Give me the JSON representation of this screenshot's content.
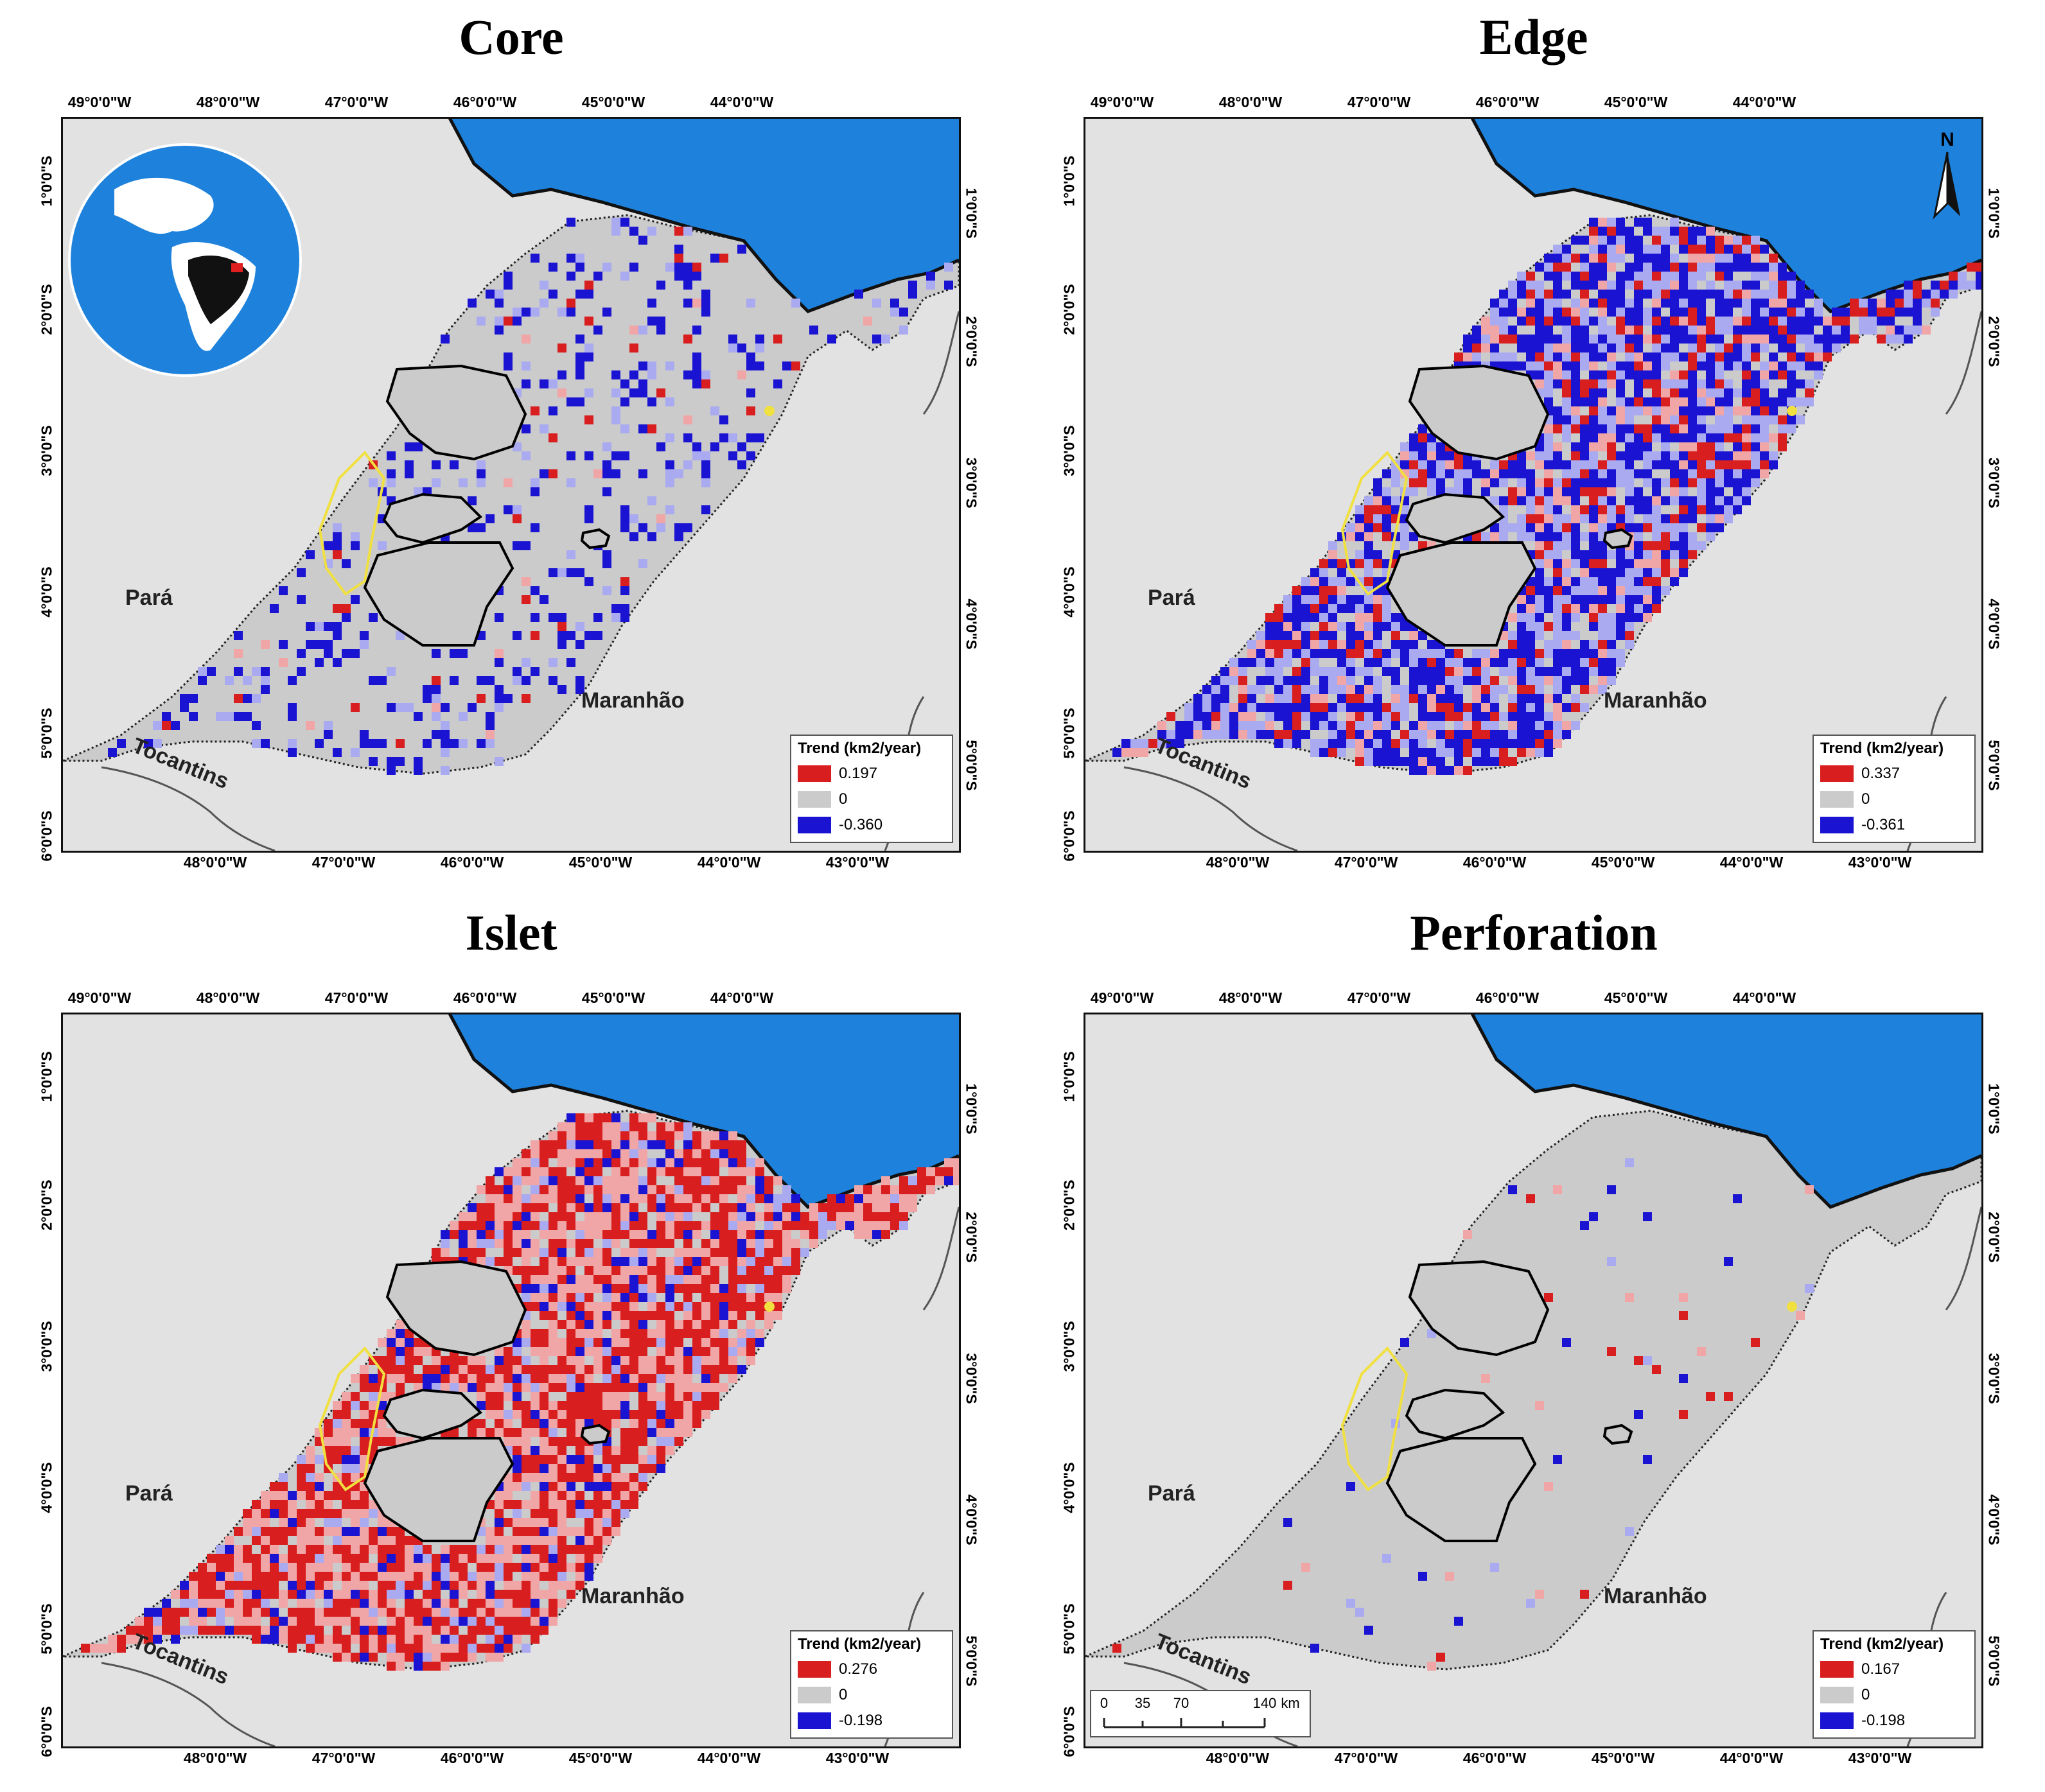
{
  "panels": [
    {
      "title": "Core",
      "legend": {
        "title": "Trend (km2/year)",
        "high": "0.197",
        "zero": "0",
        "low": "-0.360"
      },
      "density": {
        "blue": 0.14,
        "red": 0.02,
        "lightblue": 0.05,
        "pink": 0.01
      }
    },
    {
      "title": "Edge",
      "legend": {
        "title": "Trend (km2/year)",
        "high": "0.337",
        "zero": "0",
        "low": "-0.361"
      },
      "density": {
        "blue": 0.4,
        "red": 0.14,
        "lightblue": 0.25,
        "pink": 0.1
      }
    },
    {
      "title": "Islet",
      "legend": {
        "title": "Trend (km2/year)",
        "high": "0.276",
        "zero": "0",
        "low": "-0.198"
      },
      "density": {
        "blue": 0.09,
        "red": 0.42,
        "lightblue": 0.08,
        "pink": 0.32
      }
    },
    {
      "title": "Perforation",
      "legend": {
        "title": "Trend (km2/year)",
        "high": "0.167",
        "zero": "0",
        "low": "-0.198"
      },
      "density": {
        "blue": 0.008,
        "red": 0.01,
        "lightblue": 0.005,
        "pink": 0.004
      }
    }
  ],
  "axes": {
    "top_ticks": [
      "49°0'0\"W",
      "48°0'0\"W",
      "47°0'0\"W",
      "46°0'0\"W",
      "45°0'0\"W",
      "44°0'0\"W"
    ],
    "bottom_ticks": [
      "48°0'0\"W",
      "47°0'0\"W",
      "46°0'0\"W",
      "45°0'0\"W",
      "44°0'0\"W",
      "43°0'0\"W"
    ],
    "left_ticks": [
      "1°0'0\"S",
      "2°0'0\"S",
      "3°0'0\"S",
      "4°0'0\"S",
      "5°0'0\"S",
      "6°0'0\"S"
    ],
    "right_ticks": [
      "1°0'0\"S",
      "2°0'0\"S",
      "3°0'0\"S",
      "4°0'0\"S",
      "5°0'0\"S"
    ]
  },
  "labels": {
    "para": "Pará",
    "maranhao": "Maranhão",
    "tocantins": "Tocantins"
  },
  "north_label": "N",
  "scale": {
    "ticks": [
      "0",
      "35",
      "70",
      "140"
    ],
    "unit": "km"
  },
  "colors": {
    "ocean": "#1e82dc",
    "land": "#e2e2e2",
    "study_area": "#cbcbcb",
    "increase": "#d81e1e",
    "increase_light": "#f0a6a6",
    "decrease": "#1a14d2",
    "decrease_light": "#aaaaf0",
    "protected_outline": "#000000",
    "yellow_outline": "#f0e040"
  }
}
